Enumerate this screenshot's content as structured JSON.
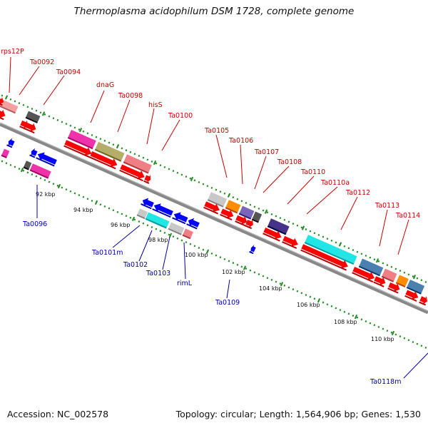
{
  "title": "Thermoplasma acidophilum DSM 1728, complete genome",
  "footer": {
    "accession": "Accession: NC_002578",
    "topology": "Topology: circular; Length: 1,564,906 bp; Genes: 1,530"
  },
  "colors": {
    "forward_label": "#cc0000",
    "reverse_label": "#0000aa",
    "backbone": "#888888",
    "tick": "#228b22",
    "cds": "#ff0000"
  },
  "scale_labels": [
    "92 kbp",
    "94 kbp",
    "96 kbp",
    "98 kbp",
    "100 kbp",
    "102 kbp",
    "104 kbp",
    "106 kbp",
    "108 kbp",
    "110 kbp"
  ],
  "forward_genes": [
    "rps12P",
    "Ta0092",
    "Ta0094",
    "dnaG",
    "Ta0098",
    "hisS",
    "Ta0100",
    "Ta0105",
    "Ta0106",
    "Ta0107",
    "Ta0108",
    "Ta0110",
    "Ta0110a",
    "Ta0112",
    "Ta0113",
    "Ta0114"
  ],
  "reverse_genes": [
    "Ta0096",
    "Ta0101m",
    "Ta0102",
    "Ta0103",
    "rimL",
    "Ta0109",
    "Ta0118m"
  ]
}
